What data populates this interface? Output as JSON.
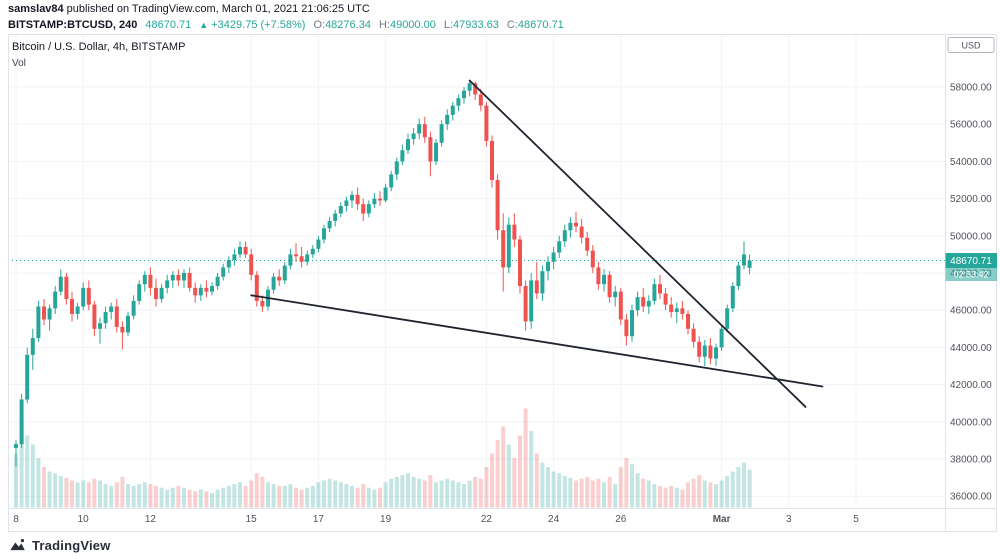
{
  "header": {
    "author": "samslav84",
    "published": "published on TradingView.com, March 01, 2021 21:06:25 UTC",
    "symbol": "BITSTAMP:BTCUSD, 240",
    "last_price": "48670.71",
    "change_arrow": "▲",
    "change": "+3429.75 (+7.58%)",
    "ohlc": [
      {
        "label": "O:",
        "value": "48276.34"
      },
      {
        "label": "H:",
        "value": "49000.00"
      },
      {
        "label": "L:",
        "value": "47933.63"
      },
      {
        "label": "C:",
        "value": "48670.71"
      }
    ]
  },
  "legend": {
    "title": "Bitcoin / U.S. Dollar, 4h, BITSTAMP",
    "indicator": "Vol"
  },
  "footer": {
    "brand": "TradingView"
  },
  "colors": {
    "up": "#26a69a",
    "down": "#ef5350",
    "up_vol": "rgba(38,166,154,0.28)",
    "down_vol": "rgba(239,83,80,0.28)",
    "grid": "#f0f3fa",
    "frame": "#e0e3eb",
    "axis_text": "#50535e",
    "trendline": "#20242e",
    "badge_bg": "#26a69a",
    "countdown_bg": "rgba(38,166,154,0.55)",
    "text_dark": "#131722",
    "text_gray": "#787b86"
  },
  "price_axis": {
    "currency": "USD",
    "ticks": [
      "58000.00",
      "56000.00",
      "54000.00",
      "52000.00",
      "50000.00",
      "48000.00",
      "46000.00",
      "44000.00",
      "42000.00",
      "40000.00",
      "38000.00",
      "36000.00"
    ],
    "badge": {
      "price": "48670.71",
      "countdown": "02:53:42"
    }
  },
  "time_axis": {
    "labels": [
      {
        "text": "8",
        "i": 0
      },
      {
        "text": "10",
        "i": 12
      },
      {
        "text": "12",
        "i": 24
      },
      {
        "text": "15",
        "i": 42
      },
      {
        "text": "17",
        "i": 54
      },
      {
        "text": "19",
        "i": 66
      },
      {
        "text": "22",
        "i": 84
      },
      {
        "text": "24",
        "i": 96
      },
      {
        "text": "26",
        "i": 108
      },
      {
        "text": "Mar",
        "i": 126,
        "bold": true
      },
      {
        "text": "3",
        "i": 138
      },
      {
        "text": "5",
        "i": 150
      }
    ]
  },
  "chart_data": {
    "type": "candlestick",
    "symbol": "BITSTAMP:BTCUSD",
    "exchange": "BITSTAMP",
    "interval": "4h",
    "currency": "USD",
    "indicator": "Vol",
    "last_price": 48670.71,
    "visible_price_range": [
      35500,
      60800
    ],
    "x_labels": [
      "8",
      "10",
      "12",
      "15",
      "17",
      "19",
      "22",
      "24",
      "26",
      "Mar",
      "3",
      "5"
    ],
    "candles_format": [
      "open",
      "high",
      "low",
      "close",
      "volume_rel"
    ],
    "candles": [
      [
        38600,
        39000,
        37600,
        38800,
        60
      ],
      [
        38800,
        41500,
        38600,
        41200,
        95
      ],
      [
        41200,
        44000,
        41000,
        43600,
        80
      ],
      [
        43600,
        45000,
        42800,
        44500,
        70
      ],
      [
        44500,
        46500,
        44300,
        46200,
        55
      ],
      [
        46200,
        46600,
        45200,
        45500,
        45
      ],
      [
        45500,
        46300,
        44900,
        46100,
        40
      ],
      [
        46100,
        47300,
        45800,
        47000,
        38
      ],
      [
        47000,
        48200,
        46800,
        47800,
        35
      ],
      [
        47800,
        48000,
        46300,
        46600,
        33
      ],
      [
        46600,
        47000,
        45400,
        45800,
        30
      ],
      [
        45800,
        46400,
        45500,
        46200,
        28
      ],
      [
        46200,
        47500,
        46000,
        47200,
        30
      ],
      [
        47200,
        47600,
        46000,
        46300,
        28
      ],
      [
        46300,
        46500,
        44600,
        45000,
        32
      ],
      [
        45000,
        45600,
        44200,
        45300,
        30
      ],
      [
        45300,
        46200,
        45000,
        45900,
        26
      ],
      [
        45900,
        46400,
        45500,
        46200,
        24
      ],
      [
        46200,
        46600,
        44800,
        45100,
        28
      ],
      [
        45100,
        45400,
        43900,
        44800,
        34
      ],
      [
        44800,
        45900,
        44600,
        45700,
        26
      ],
      [
        45700,
        46800,
        45500,
        46500,
        24
      ],
      [
        46500,
        47600,
        46300,
        47400,
        26
      ],
      [
        47400,
        48100,
        47000,
        47900,
        28
      ],
      [
        47900,
        48300,
        46800,
        47200,
        26
      ],
      [
        47200,
        47700,
        46200,
        46600,
        24
      ],
      [
        46600,
        47400,
        46400,
        47200,
        22
      ],
      [
        47200,
        47900,
        46900,
        47600,
        20
      ],
      [
        47600,
        48100,
        47200,
        47900,
        22
      ],
      [
        47900,
        48200,
        47300,
        47600,
        24
      ],
      [
        47600,
        48200,
        47200,
        48000,
        22
      ],
      [
        48000,
        48300,
        47000,
        47200,
        20
      ],
      [
        47200,
        47500,
        46400,
        46800,
        18
      ],
      [
        46800,
        47400,
        46500,
        47200,
        20
      ],
      [
        47200,
        47600,
        46700,
        47000,
        18
      ],
      [
        47000,
        47500,
        46800,
        47300,
        16
      ],
      [
        47300,
        48000,
        47100,
        47800,
        20
      ],
      [
        47800,
        48500,
        47600,
        48300,
        22
      ],
      [
        48300,
        48900,
        48000,
        48700,
        24
      ],
      [
        48700,
        49300,
        48400,
        49000,
        26
      ],
      [
        49000,
        49700,
        48800,
        49400,
        28
      ],
      [
        49400,
        49700,
        48800,
        49000,
        24
      ],
      [
        49000,
        49300,
        47600,
        47900,
        30
      ],
      [
        47900,
        48100,
        46200,
        46500,
        38
      ],
      [
        46500,
        46800,
        45900,
        46200,
        34
      ],
      [
        46200,
        47300,
        46000,
        47100,
        28
      ],
      [
        47100,
        48000,
        46900,
        47800,
        26
      ],
      [
        47800,
        48200,
        47300,
        47600,
        24
      ],
      [
        47600,
        48600,
        47400,
        48400,
        24
      ],
      [
        48400,
        49300,
        48200,
        49000,
        26
      ],
      [
        49000,
        49600,
        48600,
        48900,
        22
      ],
      [
        48900,
        49400,
        48300,
        48600,
        20
      ],
      [
        48600,
        49200,
        48400,
        49000,
        22
      ],
      [
        49000,
        49500,
        48800,
        49300,
        24
      ],
      [
        49300,
        50000,
        49100,
        49800,
        28
      ],
      [
        49800,
        50600,
        49600,
        50400,
        30
      ],
      [
        50400,
        51000,
        50200,
        50800,
        32
      ],
      [
        50800,
        51400,
        50500,
        51200,
        30
      ],
      [
        51200,
        51800,
        51000,
        51600,
        28
      ],
      [
        51600,
        52100,
        51300,
        51900,
        26
      ],
      [
        51900,
        52400,
        51500,
        52200,
        24
      ],
      [
        52200,
        52600,
        51400,
        51700,
        22
      ],
      [
        51700,
        52000,
        50800,
        51200,
        26
      ],
      [
        51200,
        51900,
        51000,
        51700,
        22
      ],
      [
        51700,
        52300,
        51500,
        52000,
        20
      ],
      [
        52000,
        52400,
        51600,
        51900,
        22
      ],
      [
        51900,
        52800,
        51800,
        52600,
        28
      ],
      [
        52600,
        53500,
        52400,
        53300,
        32
      ],
      [
        53300,
        54200,
        53000,
        54000,
        34
      ],
      [
        54000,
        54900,
        53800,
        54600,
        36
      ],
      [
        54600,
        55500,
        54400,
        55200,
        38
      ],
      [
        55200,
        55800,
        54900,
        55500,
        34
      ],
      [
        55500,
        56300,
        55200,
        56000,
        32
      ],
      [
        56000,
        56400,
        55000,
        55300,
        30
      ],
      [
        55300,
        55600,
        53200,
        54000,
        36
      ],
      [
        54000,
        55200,
        53800,
        55000,
        28
      ],
      [
        55000,
        56200,
        54800,
        56000,
        30
      ],
      [
        56000,
        56800,
        55700,
        56500,
        32
      ],
      [
        56500,
        57200,
        56200,
        57000,
        30
      ],
      [
        57000,
        57600,
        56700,
        57400,
        28
      ],
      [
        57400,
        58000,
        57100,
        57800,
        26
      ],
      [
        57800,
        58350,
        57500,
        58200,
        30
      ],
      [
        58200,
        58300,
        57300,
        57600,
        34
      ],
      [
        57600,
        57900,
        56700,
        57000,
        32
      ],
      [
        57000,
        57200,
        54800,
        55100,
        45
      ],
      [
        55100,
        55400,
        52600,
        53000,
        60
      ],
      [
        53000,
        53300,
        49800,
        50300,
        75
      ],
      [
        50300,
        51200,
        47000,
        48300,
        90
      ],
      [
        48300,
        51000,
        48000,
        50600,
        70
      ],
      [
        50600,
        51200,
        49400,
        49800,
        55
      ],
      [
        49800,
        50000,
        46900,
        47300,
        80
      ],
      [
        47300,
        47600,
        44900,
        45400,
        110
      ],
      [
        45400,
        48000,
        45000,
        47600,
        85
      ],
      [
        47600,
        48600,
        46600,
        46900,
        60
      ],
      [
        46900,
        48400,
        46500,
        48100,
        50
      ],
      [
        48100,
        48900,
        47600,
        48600,
        45
      ],
      [
        48600,
        49400,
        48200,
        49100,
        40
      ],
      [
        49100,
        50000,
        48800,
        49700,
        38
      ],
      [
        49700,
        50600,
        49400,
        50300,
        35
      ],
      [
        50300,
        51000,
        49900,
        50700,
        33
      ],
      [
        50700,
        51300,
        50200,
        50500,
        30
      ],
      [
        50500,
        50900,
        49600,
        49900,
        32
      ],
      [
        49900,
        50200,
        48900,
        49200,
        34
      ],
      [
        49200,
        49500,
        48000,
        48300,
        30
      ],
      [
        48300,
        48600,
        47100,
        47400,
        32
      ],
      [
        47400,
        48200,
        47000,
        47900,
        28
      ],
      [
        47900,
        48100,
        46400,
        46700,
        34
      ],
      [
        46700,
        47300,
        46200,
        47000,
        26
      ],
      [
        47000,
        47200,
        45200,
        45500,
        45
      ],
      [
        45500,
        45800,
        44100,
        44600,
        55
      ],
      [
        44600,
        46300,
        44300,
        46000,
        48
      ],
      [
        46000,
        47000,
        45700,
        46700,
        38
      ],
      [
        46700,
        47200,
        45900,
        46200,
        32
      ],
      [
        46200,
        46800,
        45800,
        46500,
        30
      ],
      [
        46500,
        47700,
        46300,
        47400,
        26
      ],
      [
        47400,
        47900,
        46600,
        46900,
        24
      ],
      [
        46900,
        47200,
        46000,
        46300,
        22
      ],
      [
        46300,
        46700,
        45600,
        45900,
        24
      ],
      [
        45900,
        46400,
        45300,
        46100,
        22
      ],
      [
        46100,
        46500,
        45500,
        45800,
        20
      ],
      [
        45800,
        46000,
        44700,
        45000,
        28
      ],
      [
        45000,
        45300,
        44000,
        44300,
        32
      ],
      [
        44300,
        44600,
        43200,
        43500,
        36
      ],
      [
        43500,
        44400,
        43000,
        44100,
        30
      ],
      [
        44100,
        44500,
        43100,
        43400,
        28
      ],
      [
        43400,
        44200,
        43000,
        44000,
        26
      ],
      [
        44000,
        45200,
        43800,
        45000,
        30
      ],
      [
        45000,
        46300,
        44800,
        46100,
        35
      ],
      [
        46100,
        47500,
        45900,
        47300,
        40
      ],
      [
        47300,
        48600,
        47100,
        48400,
        45
      ],
      [
        48400,
        49700,
        48200,
        49000,
        50
      ],
      [
        48276.34,
        49000,
        47933.63,
        48670.71,
        42
      ]
    ],
    "trendlines": [
      {
        "name": "descending-resistance",
        "from": {
          "i": 81,
          "price": 58350
        },
        "to": {
          "i": 141,
          "price": 40800
        }
      },
      {
        "name": "descending-support",
        "from": {
          "i": 42,
          "price": 46800
        },
        "to": {
          "i": 144,
          "price": 41900
        }
      }
    ]
  }
}
